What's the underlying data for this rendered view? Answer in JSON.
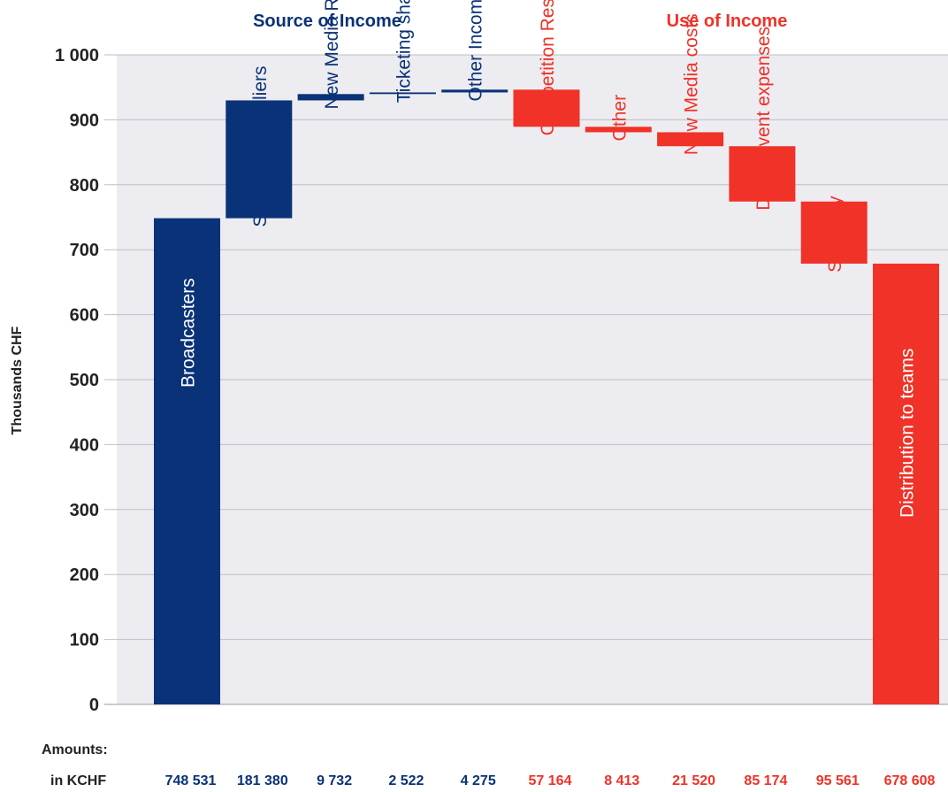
{
  "chart_data": {
    "type": "bar",
    "subtype": "waterfall",
    "source_heading": "Source of Income",
    "use_heading": "Use of Income",
    "ylabel": "Thousands CHF",
    "ylim": [
      0,
      1000
    ],
    "yticks": [
      "0",
      "100",
      "200",
      "300",
      "400",
      "500",
      "600",
      "700",
      "800",
      "900",
      "1 000"
    ],
    "amounts_label": "Amounts:",
    "amounts_unit_label": "in KCHF",
    "grid": true,
    "colors": {
      "source": "#0a3278",
      "use": "#f03228",
      "plot_bg": "#edecf1",
      "grid": "#bfbfc4"
    },
    "bars": [
      {
        "category": "Broadcasters",
        "value": 748.531,
        "amount": "748 531",
        "group": "source",
        "base": 0
      },
      {
        "category": "Sponsors/Suppliers",
        "value": 181.38,
        "amount": "181 380",
        "group": "source",
        "base": 748.531
      },
      {
        "category": "New Media Rights",
        "value": 9.732,
        "amount": "9 732",
        "group": "source",
        "base": 929.911
      },
      {
        "category": "Ticketing share final",
        "value": 2.522,
        "amount": "2 522",
        "group": "source",
        "base": 939.643
      },
      {
        "category": "Other Income",
        "value": 4.275,
        "amount": "4 275",
        "group": "source",
        "base": 942.165
      },
      {
        "category": "Competition Result",
        "value": 57.164,
        "amount": "57 164",
        "group": "use",
        "base": 889.276
      },
      {
        "category": "Other",
        "value": 8.413,
        "amount": "8 413",
        "group": "use",
        "base": 880.863
      },
      {
        "category": "New Media costs",
        "value": 21.52,
        "amount": "21 520",
        "group": "use",
        "base": 859.343
      },
      {
        "category": "Direct event expenses",
        "value": 85.174,
        "amount": "85 174",
        "group": "use",
        "base": 774.169
      },
      {
        "category": "Solidarity",
        "value": 95.561,
        "amount": "95 561",
        "group": "use",
        "base": 678.608
      },
      {
        "category": "Distribution to teams",
        "value": 678.608,
        "amount": "678 608",
        "group": "use",
        "base": 0
      }
    ]
  }
}
